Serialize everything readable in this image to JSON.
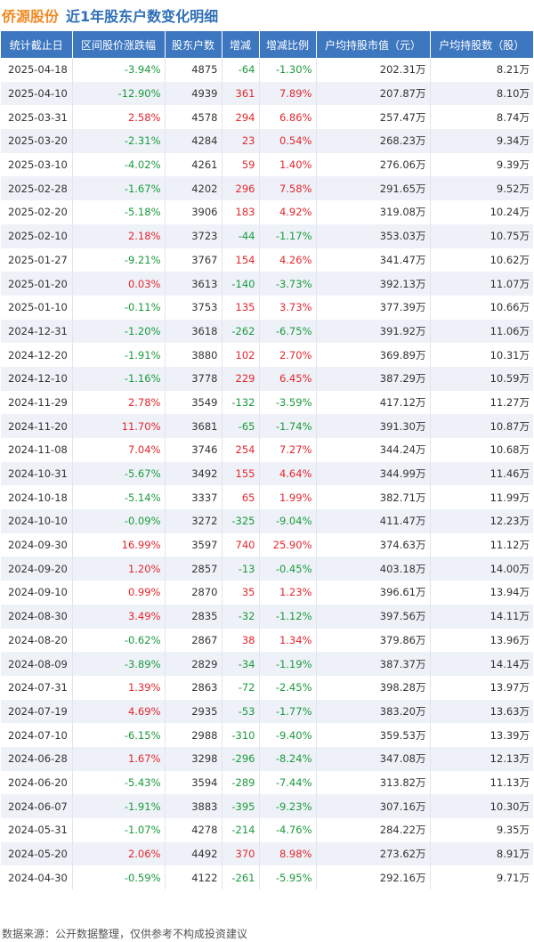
{
  "header": {
    "stock_name": "侨源股份",
    "title": "近1年股东户数变化明细"
  },
  "colors": {
    "header_bg": "#3d77c0",
    "up": "#e5262d",
    "down": "#1a9a3b",
    "stock_name": "#f08a24",
    "title": "#2f6fb6"
  },
  "table": {
    "columns": [
      "统计截止日",
      "区间股价涨跌幅",
      "股东户数",
      "增减",
      "增减比例",
      "户均持股市值（元）",
      "户均持股数（股）"
    ],
    "rows": [
      [
        "2025-04-18",
        "-3.94%",
        "4875",
        "-64",
        "-1.30%",
        "202.31万",
        "8.21万"
      ],
      [
        "2025-04-10",
        "-12.90%",
        "4939",
        "361",
        "7.89%",
        "207.87万",
        "8.10万"
      ],
      [
        "2025-03-31",
        "2.58%",
        "4578",
        "294",
        "6.86%",
        "257.47万",
        "8.74万"
      ],
      [
        "2025-03-20",
        "-2.31%",
        "4284",
        "23",
        "0.54%",
        "268.23万",
        "9.34万"
      ],
      [
        "2025-03-10",
        "-4.02%",
        "4261",
        "59",
        "1.40%",
        "276.06万",
        "9.39万"
      ],
      [
        "2025-02-28",
        "-1.67%",
        "4202",
        "296",
        "7.58%",
        "291.65万",
        "9.52万"
      ],
      [
        "2025-02-20",
        "-5.18%",
        "3906",
        "183",
        "4.92%",
        "319.08万",
        "10.24万"
      ],
      [
        "2025-02-10",
        "2.18%",
        "3723",
        "-44",
        "-1.17%",
        "353.03万",
        "10.75万"
      ],
      [
        "2025-01-27",
        "-9.21%",
        "3767",
        "154",
        "4.26%",
        "341.47万",
        "10.62万"
      ],
      [
        "2025-01-20",
        "0.03%",
        "3613",
        "-140",
        "-3.73%",
        "392.13万",
        "11.07万"
      ],
      [
        "2025-01-10",
        "-0.11%",
        "3753",
        "135",
        "3.73%",
        "377.39万",
        "10.66万"
      ],
      [
        "2024-12-31",
        "-1.20%",
        "3618",
        "-262",
        "-6.75%",
        "391.92万",
        "11.06万"
      ],
      [
        "2024-12-20",
        "-1.91%",
        "3880",
        "102",
        "2.70%",
        "369.89万",
        "10.31万"
      ],
      [
        "2024-12-10",
        "-1.16%",
        "3778",
        "229",
        "6.45%",
        "387.29万",
        "10.59万"
      ],
      [
        "2024-11-29",
        "2.78%",
        "3549",
        "-132",
        "-3.59%",
        "417.12万",
        "11.27万"
      ],
      [
        "2024-11-20",
        "11.70%",
        "3681",
        "-65",
        "-1.74%",
        "391.30万",
        "10.87万"
      ],
      [
        "2024-11-08",
        "7.04%",
        "3746",
        "254",
        "7.27%",
        "344.24万",
        "10.68万"
      ],
      [
        "2024-10-31",
        "-5.67%",
        "3492",
        "155",
        "4.64%",
        "344.99万",
        "11.46万"
      ],
      [
        "2024-10-18",
        "-5.14%",
        "3337",
        "65",
        "1.99%",
        "382.71万",
        "11.99万"
      ],
      [
        "2024-10-10",
        "-0.09%",
        "3272",
        "-325",
        "-9.04%",
        "411.47万",
        "12.23万"
      ],
      [
        "2024-09-30",
        "16.99%",
        "3597",
        "740",
        "25.90%",
        "374.63万",
        "11.12万"
      ],
      [
        "2024-09-20",
        "1.20%",
        "2857",
        "-13",
        "-0.45%",
        "403.18万",
        "14.00万"
      ],
      [
        "2024-09-10",
        "0.99%",
        "2870",
        "35",
        "1.23%",
        "396.61万",
        "13.94万"
      ],
      [
        "2024-08-30",
        "3.49%",
        "2835",
        "-32",
        "-1.12%",
        "397.56万",
        "14.11万"
      ],
      [
        "2024-08-20",
        "-0.62%",
        "2867",
        "38",
        "1.34%",
        "379.86万",
        "13.96万"
      ],
      [
        "2024-08-09",
        "-3.89%",
        "2829",
        "-34",
        "-1.19%",
        "387.37万",
        "14.14万"
      ],
      [
        "2024-07-31",
        "1.39%",
        "2863",
        "-72",
        "-2.45%",
        "398.28万",
        "13.97万"
      ],
      [
        "2024-07-19",
        "4.69%",
        "2935",
        "-53",
        "-1.77%",
        "383.20万",
        "13.63万"
      ],
      [
        "2024-07-10",
        "-6.15%",
        "2988",
        "-310",
        "-9.40%",
        "359.53万",
        "13.39万"
      ],
      [
        "2024-06-28",
        "1.67%",
        "3298",
        "-296",
        "-8.24%",
        "347.08万",
        "12.13万"
      ],
      [
        "2024-06-20",
        "-5.43%",
        "3594",
        "-289",
        "-7.44%",
        "313.82万",
        "11.13万"
      ],
      [
        "2024-06-07",
        "-1.91%",
        "3883",
        "-395",
        "-9.23%",
        "307.16万",
        "10.30万"
      ],
      [
        "2024-05-31",
        "-1.07%",
        "4278",
        "-214",
        "-4.76%",
        "284.22万",
        "9.35万"
      ],
      [
        "2024-05-20",
        "2.06%",
        "4492",
        "370",
        "8.98%",
        "273.62万",
        "8.91万"
      ],
      [
        "2024-04-30",
        "-0.59%",
        "4122",
        "-261",
        "-5.95%",
        "292.16万",
        "9.71万"
      ]
    ]
  },
  "footer": {
    "text": "数据来源：公开数据整理，仅供参考不构成投资建议"
  }
}
